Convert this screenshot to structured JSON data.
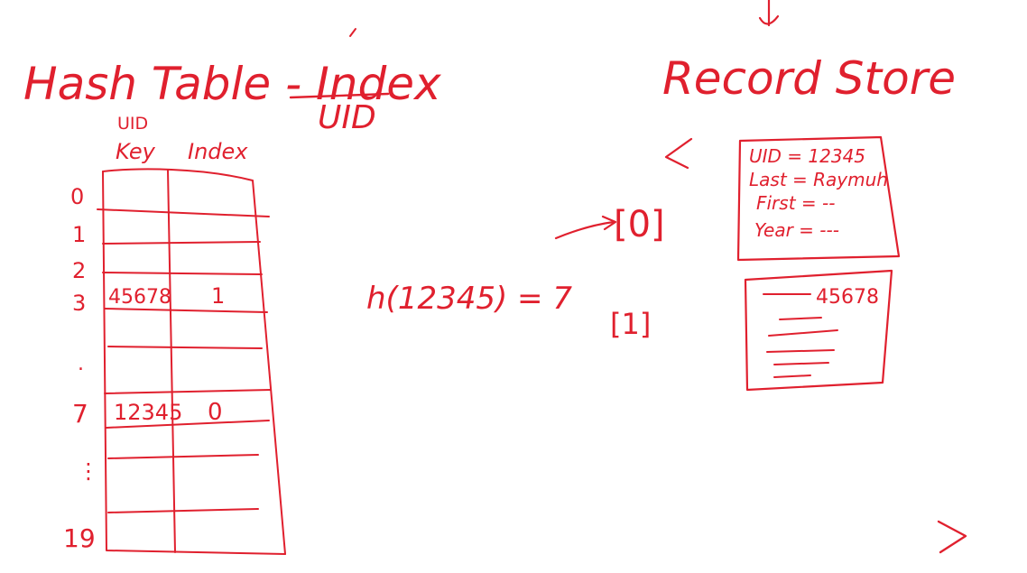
{
  "ink_color": "#e0202e",
  "background": "#ffffff",
  "hash_table": {
    "title": "Hash Table - Index",
    "title_sub": "UID",
    "col_key_header_top": "UID",
    "col_key_header": "Key",
    "col_index_header": "Index",
    "row_labels": [
      "0",
      "1",
      "2",
      "3",
      ".",
      "7",
      "⋮",
      "19"
    ],
    "rows": [
      {
        "slot": "3",
        "key": "45678",
        "index": "1"
      },
      {
        "slot": "7",
        "key": "12345",
        "index": "0"
      }
    ]
  },
  "hash_function": {
    "expression": "h(12345) = 7"
  },
  "record_store": {
    "title": "Record Store",
    "slot_labels": [
      "[0]",
      "[1]"
    ],
    "record_0": {
      "lines": [
        "UID = 12345",
        "Last = Raymuh",
        "First = --",
        "Year = ---"
      ]
    },
    "record_1": {
      "uid": "45678"
    }
  },
  "icons": [
    "down-arrow-icon",
    "pointer-arrow-icon",
    "next-chevron-icon",
    "slash-mark-icon"
  ]
}
